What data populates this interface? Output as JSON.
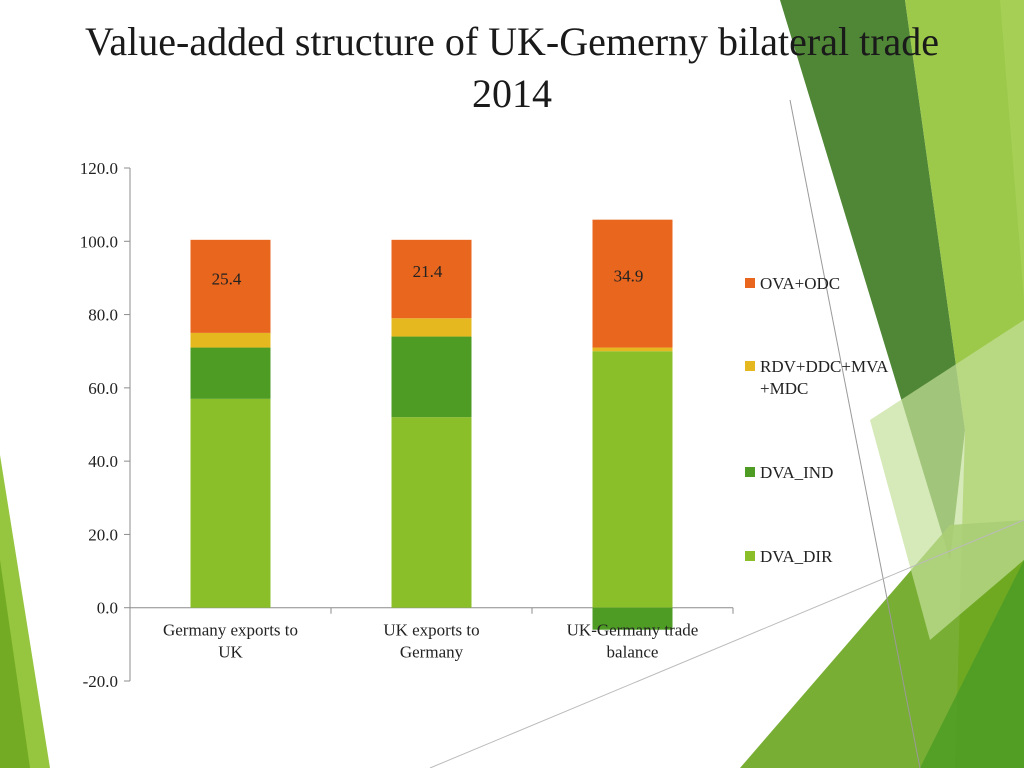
{
  "slide": {
    "title_line1": "Value-added structure of UK-Gemerny bilateral trade",
    "title_line2": "2014"
  },
  "chart_data": {
    "type": "bar",
    "stacked": true,
    "categories": [
      "Germany exports to UK",
      "UK exports to Germany",
      "UK-Germany trade balance"
    ],
    "category_label_lines": [
      [
        "Germany exports to",
        "UK"
      ],
      [
        "UK exports to",
        "Germany"
      ],
      [
        "UK-Germany trade",
        "balance"
      ]
    ],
    "series": [
      {
        "name": "DVA_DIR",
        "color": "#8bbf2a",
        "values": [
          57.0,
          52.0,
          70.0
        ]
      },
      {
        "name": "DVA_IND",
        "color": "#4e9c24",
        "values": [
          14.0,
          22.0,
          -6.0
        ]
      },
      {
        "name": "RDV+DDC+MVA+MDC",
        "color": "#e6b820",
        "values": [
          4.0,
          5.0,
          1.0
        ]
      },
      {
        "name": "OVA+ODC",
        "color": "#e8661e",
        "values": [
          25.4,
          21.4,
          34.9
        ]
      }
    ],
    "legend_order": [
      "OVA+ODC",
      "RDV+DDC+MVA+MDC",
      "DVA_IND",
      "DVA_DIR"
    ],
    "legend_label_lines": {
      "OVA+ODC": [
        "OVA+ODC"
      ],
      "RDV+DDC+MVA+MDC": [
        "RDV+DDC+MVA",
        "+MDC"
      ],
      "DVA_IND": [
        "DVA_IND"
      ],
      "DVA_DIR": [
        "DVA_DIR"
      ]
    },
    "data_labels": {
      "series": "OVA+ODC",
      "values": [
        "25.4",
        "21.4",
        "34.9"
      ]
    },
    "ylim": [
      -20,
      120
    ],
    "yticks": [
      -20,
      0,
      20,
      40,
      60,
      80,
      100,
      120
    ],
    "ytick_labels": [
      "-20.0",
      "0.0",
      "20.0",
      "40.0",
      "60.0",
      "80.0",
      "100.0",
      "120.0"
    ],
    "legend_position": "right",
    "grid": false,
    "xlabel": "",
    "ylabel": ""
  }
}
